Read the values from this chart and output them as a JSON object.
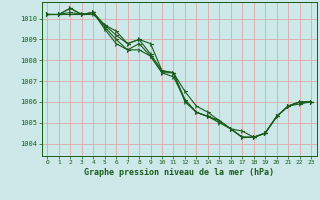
{
  "xlabel": "Graphe pression niveau de la mer (hPa)",
  "xlim": [
    -0.5,
    23.5
  ],
  "ylim": [
    1003.4,
    1010.8
  ],
  "yticks": [
    1004,
    1005,
    1006,
    1007,
    1008,
    1009,
    1010
  ],
  "xticks": [
    0,
    1,
    2,
    3,
    4,
    5,
    6,
    7,
    8,
    9,
    10,
    11,
    12,
    13,
    14,
    15,
    16,
    17,
    18,
    19,
    20,
    21,
    22,
    23
  ],
  "bg_color": "#cce8e8",
  "grid_color": "#dda8a8",
  "line_color": "#1a5c1a",
  "lines": [
    [
      1010.2,
      1010.2,
      1010.5,
      1010.2,
      1010.2,
      1009.7,
      1009.4,
      1008.8,
      1009.0,
      1008.8,
      1007.5,
      1007.4,
      1006.5,
      1005.8,
      1005.5,
      1005.1,
      1004.7,
      1004.6,
      1004.3,
      1004.5,
      1005.3,
      1005.8,
      1006.0,
      1006.0
    ],
    [
      1010.2,
      1010.2,
      1010.3,
      1010.2,
      1010.3,
      1009.6,
      1009.0,
      1008.5,
      1008.5,
      1008.2,
      1007.4,
      1007.2,
      1006.1,
      1005.5,
      1005.3,
      1005.0,
      1004.7,
      1004.3,
      1004.3,
      1004.5,
      1005.3,
      1005.8,
      1005.9,
      1006.0
    ],
    [
      1010.2,
      1010.2,
      1010.5,
      1010.2,
      1010.3,
      1009.7,
      1009.2,
      1008.8,
      1009.0,
      1008.3,
      1007.5,
      1007.4,
      1006.1,
      1005.5,
      1005.3,
      1005.1,
      1004.7,
      1004.3,
      1004.3,
      1004.5,
      1005.3,
      1005.8,
      1006.0,
      1006.0
    ],
    [
      1010.2,
      1010.2,
      1010.2,
      1010.2,
      1010.3,
      1009.5,
      1008.8,
      1008.5,
      1008.8,
      1008.2,
      1007.4,
      1007.4,
      1006.0,
      1005.5,
      1005.3,
      1005.1,
      1004.7,
      1004.3,
      1004.3,
      1004.5,
      1005.3,
      1005.8,
      1006.0,
      1006.0
    ]
  ]
}
